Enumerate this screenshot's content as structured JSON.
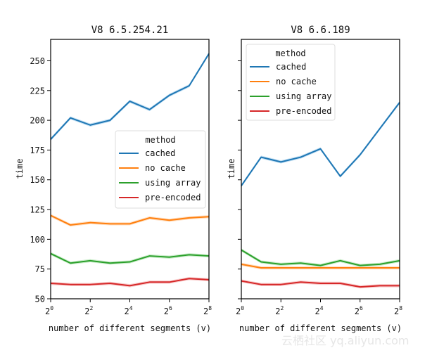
{
  "chart_data": [
    {
      "type": "line",
      "title": "V8 6.5.254.21",
      "xlabel": "number of different segments (v)",
      "ylabel": "time",
      "x": [
        1,
        2,
        4,
        8,
        16,
        32,
        64,
        128,
        256
      ],
      "xscale": "log2",
      "xticks": [
        {
          "base": "2",
          "exp": "0",
          "value": 1
        },
        {
          "base": "2",
          "exp": "2",
          "value": 4
        },
        {
          "base": "2",
          "exp": "4",
          "value": 16
        },
        {
          "base": "2",
          "exp": "6",
          "value": 64
        },
        {
          "base": "2",
          "exp": "8",
          "value": 256
        }
      ],
      "ylim": [
        50,
        268
      ],
      "yticks": [
        50,
        75,
        100,
        125,
        150,
        175,
        200,
        225,
        250
      ],
      "show_ytick_labels": true,
      "legend": {
        "title": "method",
        "placement": "center-right"
      },
      "series": [
        {
          "name": "cached",
          "color": "#1f77b4",
          "band": "#a9d3ef",
          "values": [
            184,
            202,
            196,
            200,
            216,
            209,
            221,
            229,
            256
          ]
        },
        {
          "name": "no cache",
          "color": "#ff7f0e",
          "band": "#ffd2a8",
          "values": [
            120,
            112,
            114,
            113,
            113,
            118,
            116,
            118,
            119
          ]
        },
        {
          "name": "using array",
          "color": "#2ca02c",
          "band": "#b3e6b3",
          "values": [
            88,
            80,
            82,
            80,
            81,
            86,
            85,
            87,
            86
          ]
        },
        {
          "name": "pre-encoded",
          "color": "#d62728",
          "band": "#f5b7b7",
          "values": [
            63,
            62,
            62,
            63,
            61,
            64,
            64,
            67,
            66
          ]
        }
      ]
    },
    {
      "type": "line",
      "title": "V8 6.6.189",
      "xlabel": "number of different segments (v)",
      "ylabel": "time",
      "x": [
        1,
        2,
        4,
        8,
        16,
        32,
        64,
        128,
        256
      ],
      "xscale": "log2",
      "xticks": [
        {
          "base": "2",
          "exp": "0",
          "value": 1
        },
        {
          "base": "2",
          "exp": "2",
          "value": 4
        },
        {
          "base": "2",
          "exp": "4",
          "value": 16
        },
        {
          "base": "2",
          "exp": "6",
          "value": 64
        },
        {
          "base": "2",
          "exp": "8",
          "value": 256
        }
      ],
      "ylim": [
        50,
        268
      ],
      "yticks": [
        50,
        75,
        100,
        125,
        150,
        175,
        200,
        225,
        250
      ],
      "show_ytick_labels": false,
      "legend": {
        "title": "method",
        "placement": "top-left"
      },
      "series": [
        {
          "name": "cached",
          "color": "#1f77b4",
          "band": "#a9d3ef",
          "values": [
            145,
            169,
            165,
            169,
            176,
            153,
            171,
            193,
            215
          ]
        },
        {
          "name": "no cache",
          "color": "#ff7f0e",
          "band": "#ffd2a8",
          "values": [
            79,
            76,
            76,
            76,
            76,
            76,
            76,
            76,
            76
          ]
        },
        {
          "name": "using array",
          "color": "#2ca02c",
          "band": "#b3e6b3",
          "values": [
            91,
            81,
            79,
            80,
            78,
            82,
            78,
            79,
            82
          ]
        },
        {
          "name": "pre-encoded",
          "color": "#d62728",
          "band": "#f5b7b7",
          "values": [
            65,
            62,
            62,
            64,
            63,
            63,
            60,
            61,
            61
          ]
        }
      ]
    }
  ],
  "watermark": "云栖社区 yq.aliyun.com"
}
